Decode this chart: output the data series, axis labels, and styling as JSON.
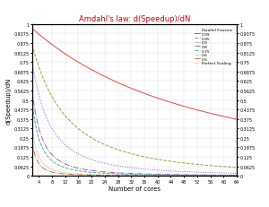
{
  "title": "Amdahl's law: d(Speedup)/dN",
  "xlabel": "Number of cores",
  "ylabel": "d(Speedup)/dN",
  "parallel_fractions": [
    0.99,
    0.95,
    0.9,
    0.8,
    0.75,
    0.6,
    0.5
  ],
  "line_colors": [
    "#ee4444",
    "#88aa44",
    "#6666bb",
    "#9966aa",
    "#44aaaa",
    "#aaaa44",
    "#bb7744"
  ],
  "line_styles": [
    "-",
    "--",
    ":",
    "-.",
    "--",
    ":",
    "-."
  ],
  "perfect_scaling_color": "#ffbbbb",
  "perfect_scaling_style": "--",
  "N_max": 64,
  "yticks": [
    0,
    0.0625,
    0.125,
    0.1875,
    0.25,
    0.3125,
    0.375,
    0.4375,
    0.5,
    0.5625,
    0.625,
    0.6875,
    0.75,
    0.8125,
    0.875,
    0.9375,
    1.0
  ],
  "ytick_labels": [
    "0",
    "0.0625",
    "0.125",
    "0.1875",
    "0.25",
    "0.3125",
    "0.375",
    "0.4375",
    "0.5",
    "0.5625",
    "0.625",
    "0.6875",
    "0.75",
    "0.8125",
    "0.875",
    "0.9375",
    "1"
  ],
  "xticks": [
    4,
    8,
    12,
    16,
    20,
    24,
    28,
    32,
    36,
    40,
    44,
    48,
    52,
    56,
    60,
    64
  ],
  "title_color": "#cc0000",
  "background_color": "#ffffff",
  "grid_color": "#dddddd",
  "figsize": [
    3.0,
    2.32
  ],
  "dpi": 100
}
